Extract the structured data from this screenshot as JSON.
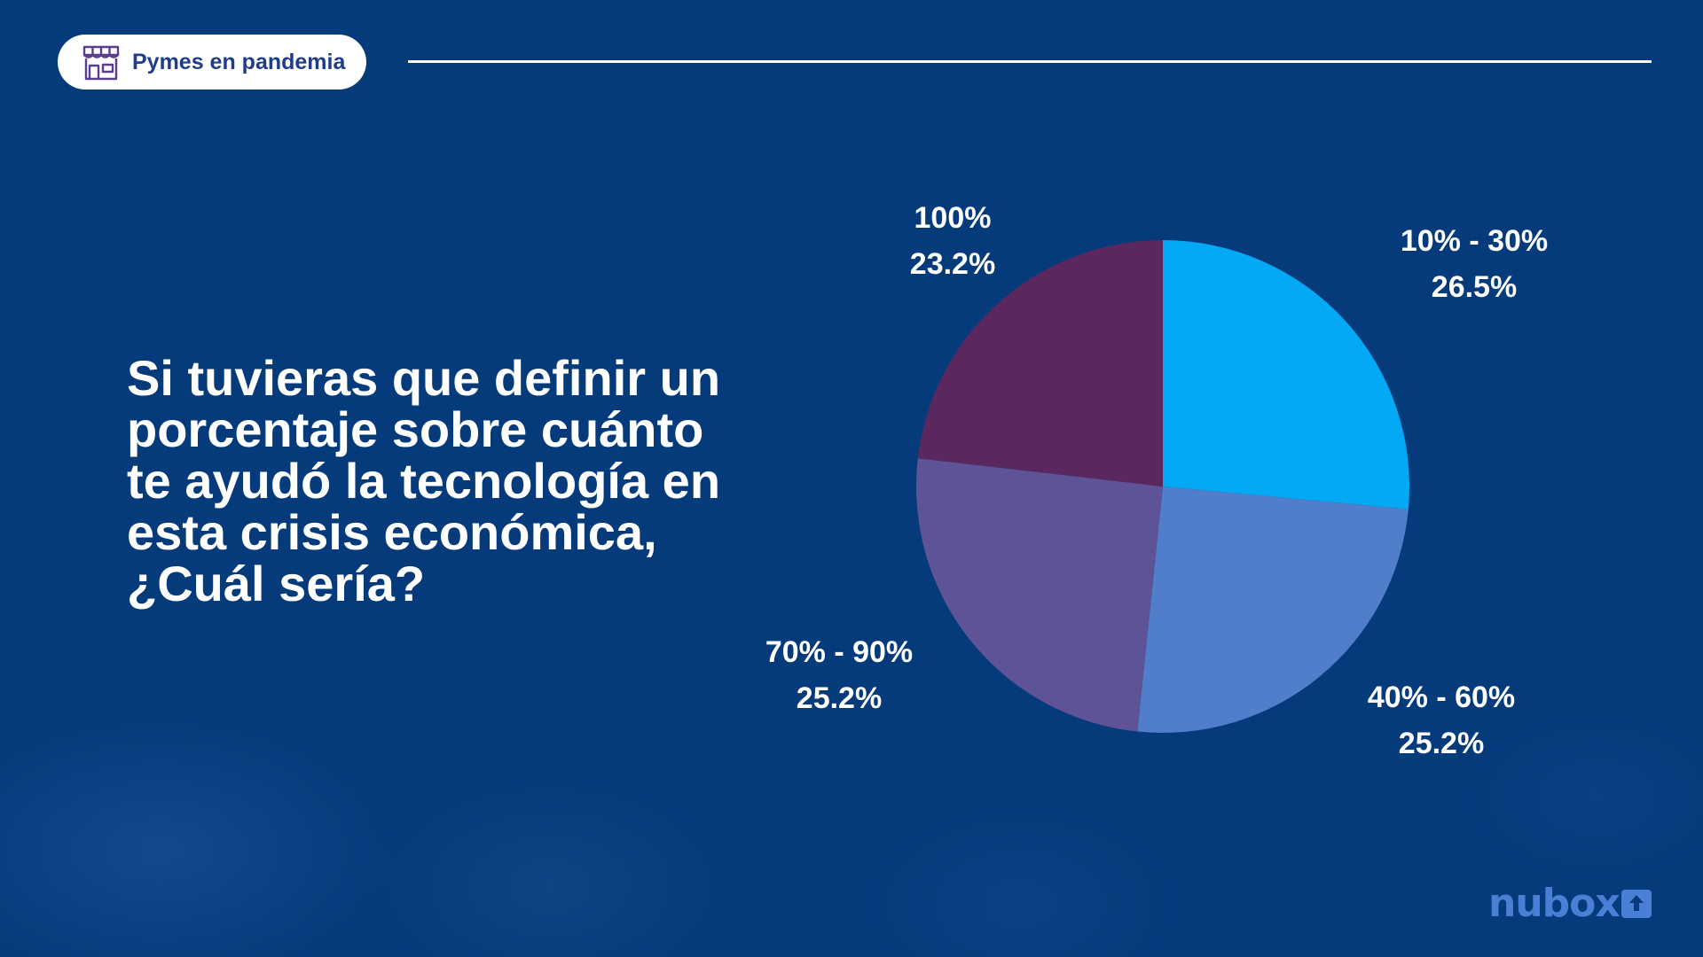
{
  "header": {
    "tag_label": "Pymes en pandemia",
    "tag_icon": "storefront-icon"
  },
  "question": "Si tuvieras que definir un porcentaje sobre cuánto te ayudó la tecnología en esta crisis económica, ¿Cuál sería?",
  "brand": {
    "logo_text": "nubox",
    "logo_icon": "cloud-upload-icon",
    "logo_color": "#4a7fd6"
  },
  "colors": {
    "background": "#053a7b",
    "text": "#ffffff"
  },
  "chart_data": {
    "type": "pie",
    "title": "",
    "slices": [
      {
        "label": "10% - 30%",
        "value": 26.5,
        "display": "26.5%",
        "color": "#03a9f4"
      },
      {
        "label": "40% - 60%",
        "value": 25.2,
        "display": "25.2%",
        "color": "#507ecb"
      },
      {
        "label": "70% - 90%",
        "value": 25.2,
        "display": "25.2%",
        "color": "#5e5396"
      },
      {
        "label": "100%",
        "value": 23.2,
        "display": "23.2%",
        "color": "#5b275f"
      }
    ]
  }
}
